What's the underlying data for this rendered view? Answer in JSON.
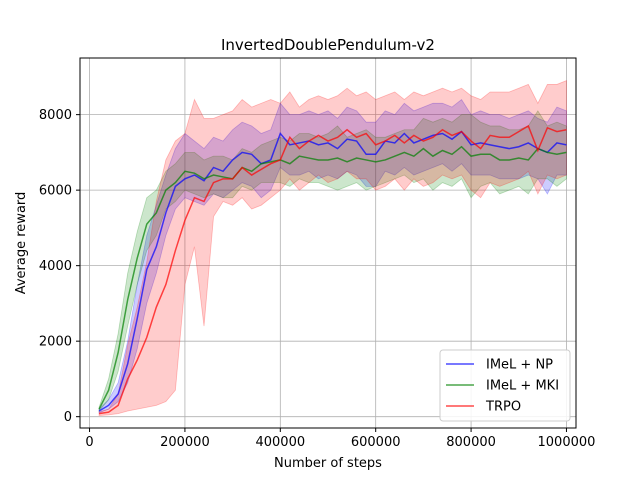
{
  "chart_data": {
    "type": "line",
    "title": "InvertedDoublePendulum-v2",
    "xlabel": "Number of steps",
    "ylabel": "Average reward",
    "xlim": [
      -20000,
      1020000
    ],
    "ylim": [
      -300,
      9500
    ],
    "xticks": [
      0,
      200000,
      400000,
      600000,
      800000,
      1000000
    ],
    "xtick_labels": [
      "0",
      "200000",
      "400000",
      "600000",
      "800000",
      "1000000"
    ],
    "yticks": [
      0,
      2000,
      4000,
      6000,
      8000
    ],
    "ytick_labels": [
      "0",
      "2000",
      "4000",
      "6000",
      "8000"
    ],
    "grid": true,
    "legend_position": "bottom-right",
    "x": [
      20000,
      40000,
      60000,
      80000,
      100000,
      120000,
      140000,
      160000,
      180000,
      200000,
      220000,
      240000,
      260000,
      280000,
      300000,
      320000,
      340000,
      360000,
      380000,
      400000,
      420000,
      440000,
      460000,
      480000,
      500000,
      520000,
      540000,
      560000,
      580000,
      600000,
      620000,
      640000,
      660000,
      680000,
      700000,
      720000,
      740000,
      760000,
      780000,
      800000,
      820000,
      840000,
      860000,
      880000,
      900000,
      920000,
      940000,
      960000,
      980000,
      1000000
    ],
    "series": [
      {
        "name": "IMeL + NP",
        "color": "#0000ff",
        "values": [
          150,
          300,
          600,
          1400,
          2600,
          3900,
          4500,
          5400,
          6100,
          6300,
          6400,
          6250,
          6600,
          6500,
          6800,
          7000,
          6950,
          6700,
          6800,
          7500,
          7200,
          7250,
          7300,
          7200,
          7250,
          7100,
          7350,
          7300,
          6950,
          6950,
          7300,
          7250,
          7500,
          7250,
          7350,
          7450,
          7500,
          7350,
          7550,
          7200,
          7250,
          7200,
          7150,
          7100,
          7150,
          7250,
          7100,
          7000,
          7250,
          7200
        ],
        "lower": [
          100,
          200,
          400,
          900,
          1800,
          3000,
          3800,
          4800,
          5500,
          5800,
          5700,
          5600,
          5900,
          5800,
          6000,
          6200,
          6100,
          5800,
          6000,
          6600,
          6400,
          6400,
          6500,
          6300,
          6400,
          6300,
          6500,
          6400,
          6100,
          6100,
          6500,
          6400,
          6600,
          6400,
          6500,
          6600,
          6700,
          6500,
          6700,
          6400,
          6400,
          6400,
          6300,
          6300,
          6300,
          6400,
          6300,
          5900,
          6400,
          6400
        ],
        "upper": [
          200,
          450,
          900,
          2000,
          3500,
          4800,
          5600,
          6400,
          7100,
          7500,
          7300,
          7100,
          7400,
          7300,
          7600,
          7800,
          7700,
          7500,
          7600,
          8300,
          8000,
          8000,
          8100,
          8000,
          8100,
          7900,
          8200,
          8100,
          7800,
          7800,
          8100,
          8000,
          8300,
          8100,
          8200,
          8300,
          8300,
          8200,
          8400,
          8000,
          8100,
          8000,
          8000,
          7900,
          8000,
          8100,
          7900,
          7800,
          8200,
          8100
        ]
      },
      {
        "name": "IMeL + MKI",
        "color": "#008000",
        "values": [
          200,
          700,
          1700,
          3100,
          4200,
          5100,
          5400,
          6000,
          6200,
          6500,
          6450,
          6300,
          6400,
          6350,
          6300,
          6600,
          6500,
          6700,
          6750,
          6800,
          6700,
          6900,
          6850,
          6800,
          6800,
          6850,
          6750,
          6850,
          6800,
          6750,
          6800,
          6900,
          7000,
          6900,
          7100,
          6900,
          7050,
          6950,
          7150,
          6900,
          6950,
          6950,
          6800,
          6800,
          6850,
          6800,
          7100,
          7000,
          6950,
          7000
        ],
        "lower": [
          150,
          450,
          1200,
          2400,
          3500,
          4400,
          4800,
          5500,
          5700,
          6000,
          5900,
          5800,
          5900,
          5800,
          5800,
          6100,
          6000,
          6200,
          6200,
          6200,
          6100,
          6300,
          6200,
          6200,
          6100,
          6000,
          6100,
          6200,
          6000,
          6100,
          6200,
          6300,
          6400,
          6200,
          6300,
          6000,
          6200,
          6100,
          6300,
          5800,
          6100,
          6200,
          5900,
          6000,
          6100,
          5900,
          6300,
          6300,
          6100,
          6300
        ],
        "upper": [
          250,
          1000,
          2200,
          3800,
          4900,
          5800,
          6000,
          6500,
          6700,
          7000,
          7000,
          6800,
          6900,
          6900,
          6800,
          7100,
          7000,
          7200,
          7300,
          7400,
          7300,
          7500,
          7500,
          7400,
          7500,
          7700,
          7400,
          7500,
          7600,
          7400,
          7400,
          7500,
          7600,
          7600,
          7900,
          7800,
          7900,
          7800,
          8000,
          8000,
          7800,
          7700,
          7700,
          7600,
          7600,
          7700,
          8100,
          7700,
          7800,
          7700
        ]
      },
      {
        "name": "TRPO",
        "color": "#ff0000",
        "values": [
          80,
          120,
          300,
          1000,
          1500,
          2100,
          2900,
          3500,
          4400,
          5200,
          5800,
          5700,
          6200,
          6300,
          6300,
          6600,
          6400,
          6550,
          6700,
          6800,
          7400,
          7100,
          7300,
          7450,
          7300,
          7400,
          7600,
          7400,
          7500,
          7200,
          7300,
          7450,
          7250,
          7450,
          7300,
          7400,
          7600,
          7450,
          7550,
          7300,
          7100,
          7450,
          7400,
          7400,
          7550,
          7700,
          7050,
          7650,
          7550,
          7600
        ],
        "lower": [
          30,
          50,
          80,
          150,
          200,
          250,
          300,
          400,
          700,
          3500,
          4500,
          2400,
          5300,
          5700,
          5600,
          5800,
          5500,
          5600,
          5800,
          6000,
          6300,
          6000,
          6200,
          6400,
          6200,
          6300,
          6500,
          6300,
          6300,
          6000,
          6100,
          6300,
          6000,
          6300,
          6100,
          6200,
          6400,
          6300,
          6400,
          6000,
          5800,
          6200,
          6100,
          6200,
          6300,
          6500,
          5900,
          6400,
          6300,
          6400
        ],
        "upper": [
          130,
          200,
          600,
          1900,
          2900,
          4100,
          5700,
          6800,
          7300,
          7500,
          8400,
          7900,
          7900,
          8000,
          8100,
          8400,
          8200,
          8300,
          8400,
          8300,
          8600,
          8200,
          8400,
          8500,
          8400,
          8500,
          8700,
          8500,
          8600,
          8400,
          8500,
          8600,
          8400,
          8600,
          8500,
          8600,
          8700,
          8600,
          8700,
          8500,
          8400,
          8600,
          8600,
          8600,
          8700,
          8800,
          8300,
          8800,
          8800,
          8900
        ]
      }
    ]
  }
}
